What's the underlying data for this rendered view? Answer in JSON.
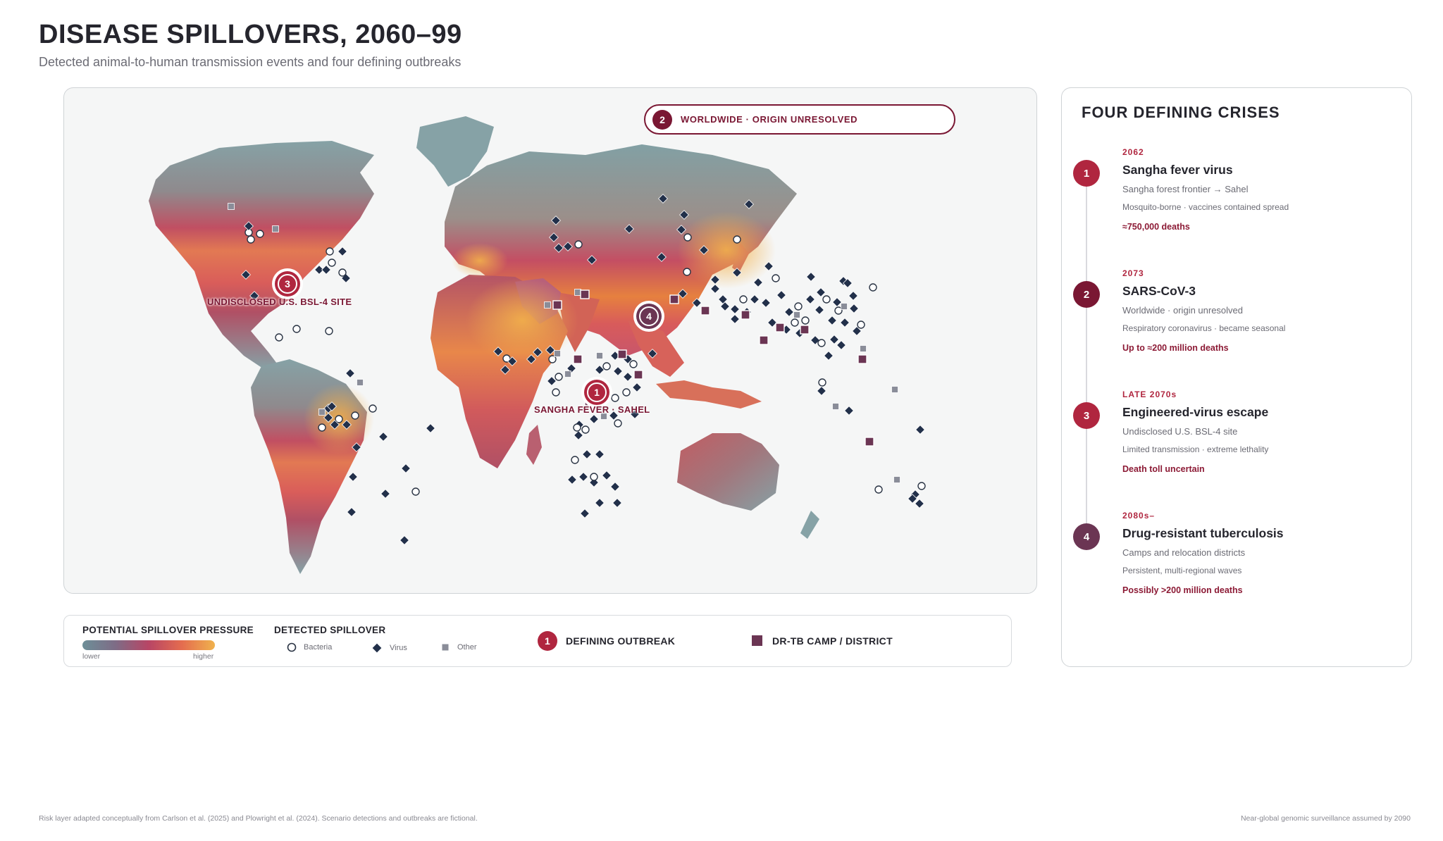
{
  "title": "DISEASE SPILLOVERS, 2060–99",
  "subtitle": "Detected animal-to-human transmission events and four defining outbreaks",
  "map": {
    "top_badge": {
      "number": "2",
      "label": "WORLDWIDE · ORIGIN UNRESOLVED"
    },
    "outbreak_markers": [
      {
        "number": "3",
        "label": "UNDISCLOSED U.S. BSL-4 SITE"
      },
      {
        "number": "1",
        "label": "SANGHA FEVER · SAHEL"
      },
      {
        "number": "4",
        "label": ""
      }
    ]
  },
  "legend": {
    "pressure_title": "POTENTIAL SPILLOVER PRESSURE",
    "pressure_low": "lower",
    "pressure_high": "higher",
    "detected_title": "DETECTED SPILLOVER",
    "bacteria": "Bacteria",
    "virus": "Virus",
    "other": "Other",
    "outbreak_number": "1",
    "outbreak_label": "DEFINING OUTBREAK",
    "camp_label": "DR-TB CAMP / DISTRICT"
  },
  "crises": {
    "title": "FOUR DEFINING CRISES",
    "items": [
      {
        "number": "1",
        "year": "2062",
        "name": "Sangha fever virus",
        "line1": "Sangha forest frontier → Sahel",
        "line2": "Mosquito-borne · vaccines contained spread",
        "deaths": "≈750,000 deaths",
        "color": "#b0263f"
      },
      {
        "number": "2",
        "year": "2073",
        "name": "SARS-CoV-3",
        "line1": "Worldwide · origin unresolved",
        "line2": "Respiratory coronavirus · became seasonal",
        "deaths": "Up to ≈200 million deaths",
        "color": "#7a1733"
      },
      {
        "number": "3",
        "year": "LATE 2070s",
        "name": "Engineered-virus escape",
        "line1": "Undisclosed U.S. BSL-4 site",
        "line2": "Limited transmission · extreme lethality",
        "deaths": "Death toll uncertain",
        "color": "#b0263f"
      },
      {
        "number": "4",
        "year": "2080s–",
        "name": "Drug-resistant tuberculosis",
        "line1": "Camps and relocation districts",
        "line2": "Persistent, multi-regional waves",
        "deaths": "Possibly >200 million deaths",
        "color": "#6b3553"
      }
    ]
  },
  "footer": {
    "left": "Risk layer adapted conceptually from Carlson et al. (2025) and Plowright et al. (2024). Scenario detections and outbreaks are fictional.",
    "right": "Near-global genomic surveillance assumed by 2090"
  },
  "colors": {
    "land_low": "#7fa0a4",
    "land_high": "#f0a04d",
    "accent": "#7a1733",
    "outbreak_red": "#b0263f",
    "tb": "#6b3553"
  }
}
